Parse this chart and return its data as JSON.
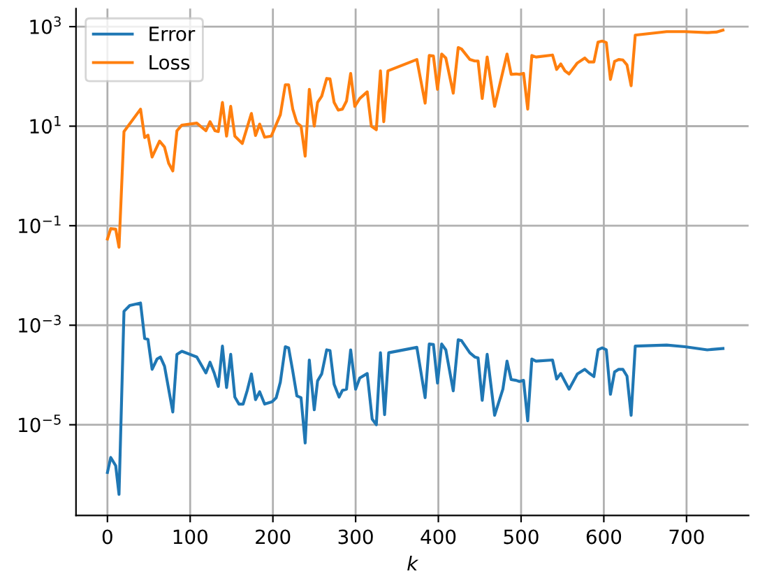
{
  "chart_data": {
    "type": "line",
    "xlabel": "k",
    "log": "y",
    "grid": true,
    "legend": "top left",
    "marker": "none",
    "line_style": "solid",
    "xlim": [
      -38,
      775
    ],
    "ylim": [
      1.5e-07,
      2300
    ],
    "xticks": [
      0,
      100,
      200,
      300,
      400,
      500,
      600,
      700
    ],
    "yticks": [
      {
        "value": 1e-05,
        "label": "10$^{−5}$"
      },
      {
        "value": 0.001,
        "label": "10$^{−3}$"
      },
      {
        "value": 0.1,
        "label": "10$^{−1}$"
      },
      {
        "value": 10,
        "label": "10$^{1}$"
      },
      {
        "value": 1000,
        "label": "10$^{3}$"
      }
    ],
    "series": [
      {
        "name": "Error",
        "color": "#1f77b4",
        "x": [
          0,
          4,
          10,
          14,
          20,
          27,
          40,
          45,
          49,
          54,
          60,
          64,
          69,
          74,
          79,
          84,
          90,
          108,
          119,
          124,
          129,
          134,
          139,
          144,
          149,
          154,
          159,
          164,
          169,
          174,
          179,
          184,
          190,
          199,
          204,
          209,
          215,
          219,
          224,
          229,
          234,
          239,
          244,
          250,
          254,
          259,
          265,
          269,
          274,
          280,
          284,
          289,
          294,
          300,
          305,
          314,
          320,
          325,
          330,
          335,
          340,
          374,
          384,
          389,
          394,
          399,
          404,
          409,
          418,
          424,
          428,
          438,
          444,
          448,
          453,
          459,
          468,
          478,
          483,
          488,
          494,
          498,
          503,
          508,
          513,
          518,
          538,
          543,
          548,
          553,
          558,
          568,
          577,
          582,
          588,
          593,
          598,
          603,
          608,
          613,
          618,
          623,
          628,
          633,
          638,
          676,
          698,
          725,
          744
        ],
        "values": [
          1.1e-06,
          2.2e-06,
          1.5e-06,
          4e-07,
          0.0019,
          0.0025,
          0.0028,
          0.00054,
          0.00052,
          0.00013,
          0.00021,
          0.00023,
          0.00015,
          5.2e-05,
          1.8e-05,
          0.00026,
          0.0003,
          0.00023,
          0.00011,
          0.00018,
          0.00011,
          5.9e-05,
          0.00038,
          5.6e-05,
          0.00026,
          3.6e-05,
          2.6e-05,
          2.6e-05,
          4.9e-05,
          0.000105,
          3.2e-05,
          4.6e-05,
          2.6e-05,
          2.9e-05,
          3.5e-05,
          7.2e-05,
          0.00037,
          0.00035,
          0.00012,
          3.8e-05,
          3.5e-05,
          4.3e-06,
          0.0002,
          2e-05,
          7.6e-05,
          0.000105,
          0.00032,
          0.00031,
          6.5e-05,
          3.6e-05,
          4.9e-05,
          5.2e-05,
          0.00032,
          5.2e-05,
          8.7e-05,
          0.000107,
          1.3e-05,
          1e-05,
          0.00028,
          1.6e-05,
          0.00028,
          0.00036,
          3.5e-05,
          0.00042,
          0.00041,
          6.9e-05,
          0.00042,
          0.00032,
          4.8e-05,
          0.00051,
          0.00049,
          0.00028,
          0.00023,
          0.00022,
          3.1e-05,
          0.00026,
          1.55e-05,
          5.2e-05,
          0.00019,
          8.1e-05,
          7.8e-05,
          7.4e-05,
          7.8e-05,
          1.2e-05,
          0.00021,
          0.00019,
          0.0002,
          8.3e-05,
          0.000107,
          7.4e-05,
          5.2e-05,
          0.000105,
          0.00013,
          0.00011,
          9.3e-05,
          0.00032,
          0.00035,
          0.00032,
          4.1e-05,
          0.000115,
          0.00013,
          0.00013,
          9.5e-05,
          1.55e-05,
          0.00038,
          0.0004,
          0.00037,
          0.00032,
          0.00034
        ]
      },
      {
        "name": "Loss",
        "color": "#ff7f0e",
        "x": [
          0,
          4,
          10,
          14,
          20,
          40,
          45,
          49,
          54,
          63,
          69,
          74,
          79,
          84,
          90,
          108,
          119,
          124,
          130,
          134,
          139,
          144,
          149,
          154,
          163,
          174,
          179,
          184,
          190,
          198,
          209,
          215,
          219,
          224,
          229,
          234,
          239,
          244,
          250,
          254,
          259,
          265,
          269,
          274,
          279,
          284,
          289,
          294,
          299,
          305,
          314,
          319,
          325,
          330,
          334,
          339,
          374,
          384,
          389,
          394,
          399,
          404,
          409,
          418,
          424,
          428,
          438,
          444,
          448,
          453,
          459,
          468,
          483,
          488,
          494,
          498,
          503,
          508,
          513,
          518,
          538,
          543,
          548,
          553,
          558,
          568,
          577,
          582,
          588,
          593,
          598,
          603,
          608,
          613,
          618,
          623,
          628,
          633,
          638,
          676,
          698,
          725,
          736,
          744
        ],
        "values": [
          0.054,
          0.087,
          0.085,
          0.037,
          7.8,
          22,
          5.9,
          6.6,
          2.4,
          5.0,
          3.8,
          1.8,
          1.26,
          8.1,
          10.5,
          11.5,
          8.1,
          12.3,
          8.1,
          7.8,
          30,
          6.3,
          25,
          6.3,
          4.5,
          18,
          6.5,
          11,
          6.0,
          6.3,
          17,
          68,
          68,
          22,
          11.7,
          10,
          2.5,
          55,
          10,
          30,
          40,
          91,
          89,
          30,
          21,
          22,
          32,
          115,
          25,
          36,
          49,
          10,
          8.5,
          129,
          12.3,
          129,
          219,
          29,
          263,
          257,
          55,
          282,
          234,
          46,
          380,
          355,
          219,
          204,
          204,
          36,
          245,
          25,
          282,
          110,
          112,
          110,
          115,
          22,
          263,
          245,
          269,
          138,
          178,
          129,
          112,
          186,
          234,
          195,
          195,
          490,
          513,
          479,
          87,
          200,
          219,
          214,
          170,
          65,
          676,
          794,
          794,
          759,
          776,
          851
        ]
      }
    ]
  }
}
